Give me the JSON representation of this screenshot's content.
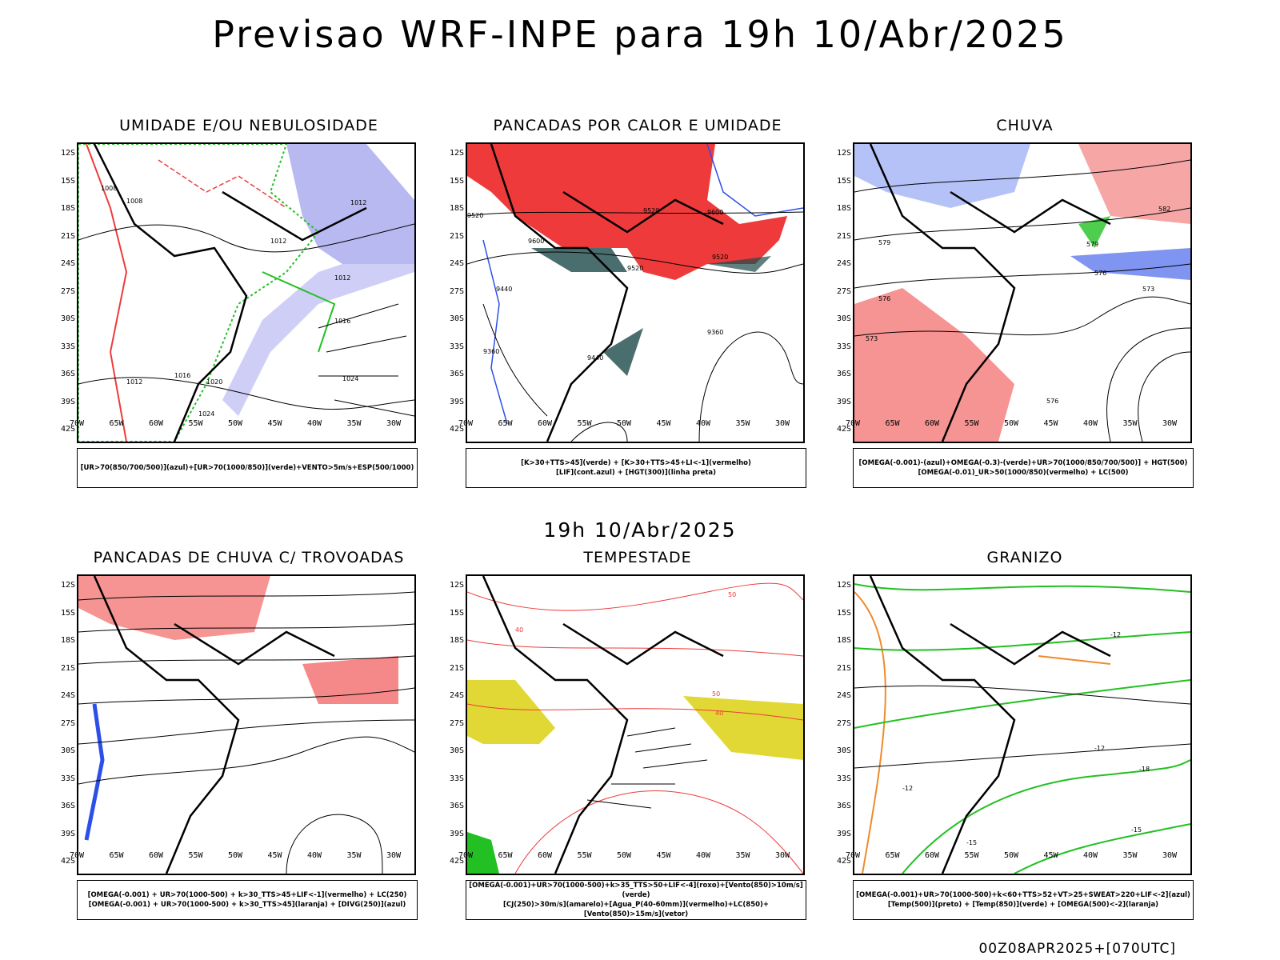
{
  "main_title": "Previsao WRF-INPE  para 19h 10/Abr/2025",
  "mid_title": "19h 10/Abr/2025",
  "footer": "00Z08APR2025+[070UTC]",
  "lat_labels": [
    "12S",
    "15S",
    "18S",
    "21S",
    "24S",
    "27S",
    "30S",
    "33S",
    "36S",
    "39S",
    "42S"
  ],
  "lon_labels": [
    "70W",
    "65W",
    "60W",
    "55W",
    "50W",
    "45W",
    "40W",
    "35W",
    "30W"
  ],
  "panels": [
    {
      "title": "UMIDADE E/OU NEBULOSIDADE",
      "legend1": "[UR>70(850/700/500)](azul)+[UR>70(1000/850)](verde)+VENTO>5m/s+ESP(500/1000)",
      "legend2": ""
    },
    {
      "title": "PANCADAS POR CALOR E UMIDADE",
      "legend1": "[K>30+TTS>45](verde) + [K>30+TTS>45+LI<-1](vermelho)",
      "legend2": "[LIF](cont.azul) + [HGT(300)](linha preta)"
    },
    {
      "title": "CHUVA",
      "legend1": "[OMEGA(-0.001)-(azul)+OMEGA(-0.3)-(verde)+UR>70(1000/850/700/500)] + HGT(500)",
      "legend2": "[OMEGA(-0.01)_UR>50(1000/850)(vermelho) + LC(500)"
    },
    {
      "title": "PANCADAS DE CHUVA C/ TROVOADAS",
      "legend1": "[OMEGA(-0.001) + UR>70(1000-500) + k>30_TTS>45+LIF<-1](vermelho) + LC(250)",
      "legend2": "[OMEGA(-0.001) + UR>70(1000-500) + k>30_TTS>45](laranja) + [DIVG(250)](azul)"
    },
    {
      "title": "TEMPESTADE",
      "legend1": "[OMEGA(-0.001)+UR>70(1000-500)+k>35_TTS>50+LIF<-4](roxo)+[Vento(850)>10m/s](verde)",
      "legend2": "[CJ(250)>30m/s](amarelo)+[Agua_P(40-60mm)](vermelho)+LC(850)+[Vento(850)>15m/s](vetor)"
    },
    {
      "title": "GRANIZO",
      "legend1": "[OMEGA(-0.001)+UR>70(1000-500)+k<60+TTS>52+VT>25+SWEAT>220+LIF<-2](azul)",
      "legend2": "[Temp(500)](preto) + [Temp(850)](verde) + [OMEGA(500)<-2](laranja)"
    }
  ],
  "contour_labels": {
    "p1": [
      "1008",
      "1008",
      "1012",
      "1012",
      "1012",
      "1016",
      "1020",
      "1024",
      "1024",
      "1016",
      "1012"
    ],
    "p2": [
      "9520",
      "9600",
      "9600",
      "9520",
      "9520",
      "9440",
      "9360",
      "9360",
      "9440",
      "9520"
    ],
    "p3": [
      "582",
      "579",
      "576",
      "573",
      "579",
      "576",
      "573",
      "576"
    ],
    "p5": [
      "50",
      "40",
      "40",
      "50"
    ],
    "p6": [
      "-12",
      "-15",
      "-12",
      "-15",
      "-18",
      "-12"
    ]
  },
  "colors": {
    "red": "#ee3a3a",
    "green": "#22c022",
    "blue": "#2b4fe8",
    "lavender": "#b9b9f2",
    "yellow": "#e2d835",
    "dark": "#1d4a4a",
    "orange": "#f08a2a"
  }
}
